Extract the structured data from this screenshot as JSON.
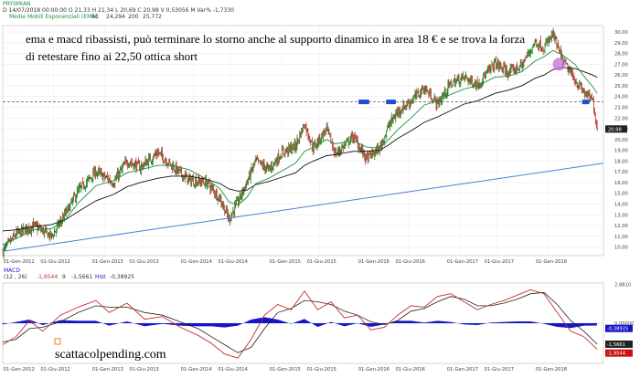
{
  "header": {
    "symbol": "PRYSMIAN",
    "ohlc": "D 14/07/2018  00:00:00   O 21,33   H 21,34   L 20,69   C 20,98   V 0,53056 M   Var% -1,7330",
    "ema_label": "Medie Mobili Esponenziali (EMA)",
    "ema_p1": "50",
    "ema_v1": "24,294",
    "ema_p2": "200",
    "ema_v2": "25,772"
  },
  "annotation": {
    "line1": "ema e macd ribassisti, può terminare lo storno anche al supporto dinamico in area 18 € e se trova la forza",
    "line2": "di retestare fino ai 22,50 ottica short"
  },
  "macd_header": {
    "name": "MACD",
    "params": "(12 , 26)",
    "v1": "-1,9544",
    "sig_p": "9",
    "v2": "-1,5661",
    "hist_label": "Hist",
    "v3": "-0,38925"
  },
  "watermark": "scattacolpending.com",
  "colors": {
    "up": "#1a7a1a",
    "down": "#c0302a",
    "ema_short": "#1f8f3a",
    "ema_long": "#111111",
    "trend": "#4a7fd6",
    "macd": "#c0302a",
    "signal": "#222222",
    "hist": "#1515c8",
    "last_price_bg": "#222222",
    "macd_badge": "#cc1010",
    "resist_band": "#1f4fd0",
    "highlight": "#c070d0"
  },
  "chart_data": {
    "type": "line",
    "title": "PRYSMIAN",
    "x_tick_labels": [
      "01-Gen-2012",
      "01-Giu-2012",
      "01-Gen-2013",
      "01-Giu-2013",
      "01-Gen-2014",
      "01-Giu-2014",
      "01-Gen-2015",
      "01-Giu-2015",
      "01-Gen-2016",
      "01-Giu-2016",
      "01-Gen-2017",
      "01-Giu-2017",
      "01-Gen-2018"
    ],
    "price_axis_ticks": [
      "10,00",
      "11,00",
      "12,00",
      "13,00",
      "14,00",
      "15,00",
      "16,00",
      "17,00",
      "18,00",
      "19,00",
      "20,00",
      "21,00",
      "22,00",
      "23,00",
      "24,00",
      "25,00",
      "26,00",
      "27,00",
      "28,00",
      "29,00",
      "30,00"
    ],
    "price_ylim": [
      9.2,
      30.6
    ],
    "price_series": {
      "name": "Prezzo",
      "x": [
        2011.85,
        2012.0,
        2012.2,
        2012.4,
        2012.55,
        2012.7,
        2012.9,
        2013.1,
        2013.25,
        2013.4,
        2013.6,
        2013.75,
        2013.95,
        2014.15,
        2014.3,
        2014.4,
        2014.5,
        2014.6,
        2014.7,
        2014.85,
        2015.0,
        2015.15,
        2015.25,
        2015.35,
        2015.5,
        2015.6,
        2015.8,
        2015.95,
        2016.1,
        2016.2,
        2016.3,
        2016.45,
        2016.6,
        2016.75,
        2016.9,
        2017.05,
        2017.2,
        2017.4,
        2017.55,
        2017.7,
        2017.85,
        2017.95,
        2018.05,
        2018.15,
        2018.3,
        2018.4,
        2018.5,
        2018.55
      ],
      "values": [
        9.6,
        11.2,
        12.0,
        11.0,
        13.0,
        15.2,
        17.0,
        16.0,
        18.0,
        17.4,
        18.8,
        17.6,
        16.2,
        16.0,
        14.5,
        12.6,
        14.2,
        16.0,
        18.0,
        17.2,
        18.8,
        19.4,
        21.5,
        19.2,
        21.0,
        18.6,
        20.3,
        18.2,
        19.2,
        21.3,
        22.6,
        23.6,
        24.8,
        23.3,
        25.2,
        25.8,
        25.1,
        27.1,
        26.2,
        26.9,
        29.1,
        28.5,
        29.8,
        27.5,
        25.5,
        24.4,
        23.6,
        20.98
      ]
    },
    "ema_50": {
      "name": "EMA 50",
      "values": [
        10.2,
        10.8,
        11.6,
        11.7,
        12.5,
        14.1,
        15.7,
        16.2,
        16.9,
        17.2,
        17.6,
        17.6,
        17.2,
        16.3,
        15.4,
        14.2,
        13.9,
        14.6,
        15.9,
        16.4,
        17.1,
        17.8,
        18.9,
        19.3,
        20.0,
        19.6,
        19.9,
        19.3,
        19.2,
        20.0,
        20.9,
        22.0,
        23.2,
        23.6,
        24.2,
        24.7,
        25.0,
        25.8,
        25.9,
        26.3,
        27.3,
        27.7,
        28.3,
        27.9,
        27.0,
        25.9,
        24.9,
        24.29
      ]
    },
    "ema_200": {
      "name": "EMA 200",
      "values": [
        11.5,
        11.6,
        11.9,
        12.1,
        12.5,
        13.3,
        14.3,
        14.9,
        15.6,
        16.0,
        16.4,
        16.6,
        16.6,
        16.3,
        15.9,
        15.4,
        15.2,
        15.3,
        15.8,
        16.1,
        16.5,
        16.9,
        17.6,
        18.0,
        18.5,
        18.6,
        18.9,
        18.9,
        19.0,
        19.5,
        20.1,
        20.8,
        21.6,
        22.1,
        22.7,
        23.3,
        23.6,
        24.3,
        24.6,
        25.0,
        25.7,
        26.0,
        26.5,
        26.7,
        26.6,
        26.3,
        26.0,
        25.77
      ]
    },
    "supports": {
      "dynamic_trendline": {
        "x": [
          2011.85,
          2018.62
        ],
        "values": [
          9.6,
          17.8
        ]
      },
      "horizontal_level": 23.5,
      "resistance_band": 23.5,
      "last_price": "20,98"
    },
    "macd": {
      "ylim": [
        -3.0,
        3.0
      ],
      "axis_ticks": [
        "2,8810",
        "0,00000"
      ],
      "badges": [
        "-0,38925",
        "-1,5661",
        "-1,9544"
      ],
      "x": [
        2011.85,
        2012.0,
        2012.15,
        2012.3,
        2012.5,
        2012.7,
        2012.9,
        2013.05,
        2013.25,
        2013.45,
        2013.65,
        2013.85,
        2014.05,
        2014.2,
        2014.35,
        2014.5,
        2014.65,
        2014.8,
        2014.95,
        2015.1,
        2015.25,
        2015.4,
        2015.55,
        2015.7,
        2015.85,
        2016.0,
        2016.15,
        2016.3,
        2016.45,
        2016.6,
        2016.75,
        2016.9,
        2017.05,
        2017.2,
        2017.35,
        2017.5,
        2017.65,
        2017.8,
        2017.95,
        2018.1,
        2018.25,
        2018.4,
        2018.55
      ],
      "macd_values": [
        -1.6,
        -1.0,
        0.2,
        -0.6,
        0.6,
        1.2,
        1.7,
        0.8,
        1.5,
        0.3,
        0.5,
        -0.3,
        -0.9,
        -1.5,
        -2.3,
        -2.6,
        -1.2,
        0.6,
        1.4,
        1.0,
        2.4,
        1.0,
        1.6,
        0.4,
        0.6,
        -0.5,
        -0.3,
        0.6,
        1.3,
        1.2,
        2.0,
        2.2,
        1.6,
        1.0,
        1.4,
        1.7,
        2.1,
        2.5,
        2.2,
        0.8,
        -0.6,
        -1.0,
        -1.95
      ],
      "signal_values": [
        -1.4,
        -1.2,
        -0.4,
        -0.3,
        0.1,
        0.8,
        1.3,
        1.2,
        1.2,
        0.8,
        0.6,
        0.1,
        -0.4,
        -1.0,
        -1.6,
        -2.2,
        -1.8,
        -0.4,
        0.8,
        1.1,
        1.7,
        1.6,
        1.4,
        0.9,
        0.6,
        0.1,
        -0.1,
        0.2,
        0.9,
        1.1,
        1.6,
        2.0,
        1.8,
        1.3,
        1.3,
        1.5,
        1.8,
        2.2,
        2.3,
        1.4,
        0.2,
        -0.6,
        -1.57
      ]
    }
  }
}
